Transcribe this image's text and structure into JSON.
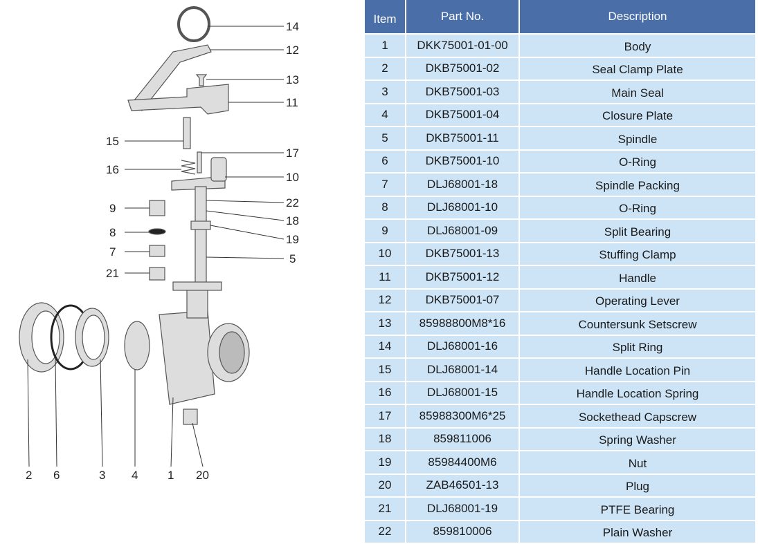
{
  "table": {
    "headers": {
      "item": "Item",
      "part_no": "Part No.",
      "description": "Description"
    },
    "rows": [
      {
        "item": "1",
        "part_no": "DKK75001-01-00",
        "description": "Body"
      },
      {
        "item": "2",
        "part_no": "DKB75001-02",
        "description": "Seal Clamp Plate"
      },
      {
        "item": "3",
        "part_no": "DKB75001-03",
        "description": "Main Seal"
      },
      {
        "item": "4",
        "part_no": "DKB75001-04",
        "description": "Closure Plate"
      },
      {
        "item": "5",
        "part_no": "DKB75001-11",
        "description": "Spindle"
      },
      {
        "item": "6",
        "part_no": "DKB75001-10",
        "description": "O-Ring"
      },
      {
        "item": "7",
        "part_no": "DLJ68001-18",
        "description": "Spindle Packing"
      },
      {
        "item": "8",
        "part_no": "DLJ68001-10",
        "description": "O-Ring"
      },
      {
        "item": "9",
        "part_no": "DLJ68001-09",
        "description": "Split Bearing"
      },
      {
        "item": "10",
        "part_no": "DKB75001-13",
        "description": "Stuffing Clamp"
      },
      {
        "item": "11",
        "part_no": "DKB75001-12",
        "description": "Handle"
      },
      {
        "item": "12",
        "part_no": "DKB75001-07",
        "description": "Operating Lever"
      },
      {
        "item": "13",
        "part_no": "85988800M8*16",
        "description": "Countersunk Setscrew"
      },
      {
        "item": "14",
        "part_no": "DLJ68001-16",
        "description": "Split Ring"
      },
      {
        "item": "15",
        "part_no": "DLJ68001-14",
        "description": "Handle Location Pin"
      },
      {
        "item": "16",
        "part_no": "DLJ68001-15",
        "description": "Handle Location Spring"
      },
      {
        "item": "17",
        "part_no": "85988300M6*25",
        "description": "Sockethead Capscrew"
      },
      {
        "item": "18",
        "part_no": "859811006",
        "description": "Spring Washer"
      },
      {
        "item": "19",
        "part_no": "85984400M6",
        "description": "Nut"
      },
      {
        "item": "20",
        "part_no": "ZAB46501-13",
        "description": "Plug"
      },
      {
        "item": "21",
        "part_no": "DLJ68001-19",
        "description": "PTFE Bearing"
      },
      {
        "item": "22",
        "part_no": "859810006",
        "description": "Plain Washer"
      }
    ]
  },
  "callouts": {
    "c14": "14",
    "c12": "12",
    "c13": "13",
    "c11": "11",
    "c15": "15",
    "c17": "17",
    "c16": "16",
    "c10": "10",
    "c22": "22",
    "c9": "9",
    "c18": "18",
    "c8": "8",
    "c19": "19",
    "c7": "7",
    "c5": "5",
    "c21": "21",
    "c2": "2",
    "c6": "6",
    "c3": "3",
    "c4": "4",
    "c1": "1",
    "c20": "20"
  },
  "colors": {
    "header_bg": "#4a6ea8",
    "row_bg": "#cde4f6"
  }
}
